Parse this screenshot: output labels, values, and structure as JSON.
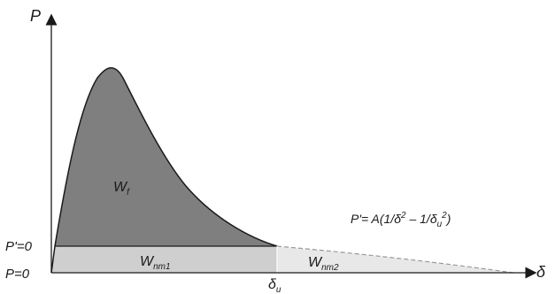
{
  "diagram": {
    "axes": {
      "y_label": "P",
      "x_label": "δ"
    },
    "levels": {
      "p_prime_label": "P'=0",
      "p_label": "P=0"
    },
    "regions": {
      "wf": {
        "main": "W",
        "sub": "f",
        "fill": "#7f7f7f"
      },
      "wnm1": {
        "main": "W",
        "sub": "nm1",
        "fill": "#cfcfcf"
      },
      "wnm2": {
        "main": "W",
        "sub": "nm2",
        "fill": "#e8e8e8"
      }
    },
    "marker": {
      "main": "δ",
      "sub": "u"
    },
    "formula": {
      "part1": "P'= A(1/δ",
      "sup1": "2",
      "part2": " – 1/δ",
      "sub2": "u",
      "sup2": "2",
      "part3": ")"
    }
  }
}
